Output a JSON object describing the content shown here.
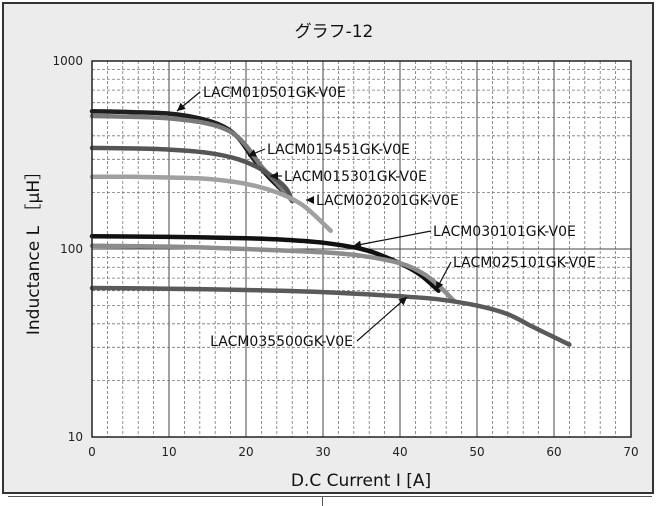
{
  "chart_data": {
    "type": "line",
    "title": "グラフ-12",
    "xlabel": "D.C Current I [A]",
    "ylabel": "Inductance L ［μH］",
    "xlim": [
      0,
      70
    ],
    "ylim": [
      10,
      1000
    ],
    "y_scale": "log",
    "grid": true,
    "x_ticks": [
      "0",
      "10",
      "20",
      "30",
      "40",
      "50",
      "60",
      "70"
    ],
    "y_ticks": [
      "10",
      "100",
      "1000"
    ],
    "series": [
      {
        "name": "LACM010501GK-V0E",
        "color": "#1e1e1e",
        "x": [
          0,
          5,
          10,
          14,
          17,
          19,
          21,
          23,
          25
        ],
        "y": [
          540,
          535,
          525,
          495,
          450,
          390,
          300,
          240,
          200
        ]
      },
      {
        "name": "LACM015451GK-V0E",
        "color": "#7a7a7a",
        "x": [
          0,
          5,
          10,
          15,
          18,
          20,
          22,
          24,
          26
        ],
        "y": [
          510,
          505,
          495,
          465,
          420,
          355,
          275,
          225,
          180
        ]
      },
      {
        "name": "LACM015301GK-V0E",
        "color": "#555555",
        "x": [
          0,
          5,
          10,
          15,
          19,
          22,
          25,
          26
        ],
        "y": [
          345,
          343,
          338,
          325,
          300,
          265,
          215,
          180
        ]
      },
      {
        "name": "LACM020201GK-V0E",
        "color": "#a0a0a0",
        "x": [
          0,
          5,
          10,
          15,
          20,
          24,
          27,
          29,
          31
        ],
        "y": [
          242,
          242,
          240,
          236,
          222,
          200,
          175,
          150,
          125
        ]
      },
      {
        "name": "LACM030101GK-V0E",
        "color": "#111111",
        "x": [
          0,
          10,
          20,
          25,
          30,
          35,
          38,
          41,
          43,
          45
        ],
        "y": [
          117,
          116,
          114,
          112,
          108,
          100,
          91,
          80,
          71,
          60
        ]
      },
      {
        "name": "LACM025101GK-V0E",
        "color": "#8c8c8c",
        "x": [
          0,
          10,
          20,
          30,
          35,
          40,
          43,
          45,
          47
        ],
        "y": [
          104,
          103,
          100,
          96,
          92,
          84,
          74,
          64,
          53
        ]
      },
      {
        "name": "LACM035500GK-V0E",
        "color": "#5a5a5a",
        "x": [
          0,
          10,
          20,
          30,
          40,
          45,
          50,
          54,
          57,
          60,
          62
        ],
        "y": [
          62,
          61.5,
          60.5,
          59,
          56,
          54,
          50,
          45,
          39,
          34,
          31
        ]
      }
    ]
  }
}
